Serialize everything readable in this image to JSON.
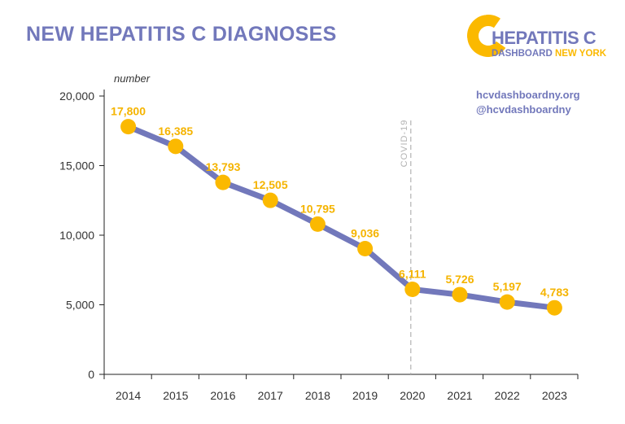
{
  "title": "NEW HEPATITIS C DIAGNOSES",
  "logo": {
    "name": "HEPATITIS C",
    "sub_part1": "DASHBOARD",
    "sub_part2": "NEW YORK"
  },
  "links": {
    "website": "hcvdashboardny.org",
    "handle": "@hcvdashboardny"
  },
  "colors": {
    "title": "#7278bb",
    "line": "#7278bb",
    "marker": "#fbb900",
    "label": "#f5b400",
    "annotation": "#b3b3b3",
    "axis": "#222222"
  },
  "chart_data": {
    "type": "line",
    "title": "NEW HEPATITIS C DIAGNOSES",
    "xlabel": "",
    "ylabel": "number",
    "categories": [
      "2014",
      "2015",
      "2016",
      "2017",
      "2018",
      "2019",
      "2020",
      "2021",
      "2022",
      "2023"
    ],
    "values": [
      17800,
      16385,
      13793,
      12505,
      10795,
      9036,
      6111,
      5726,
      5197,
      4783
    ],
    "value_labels": [
      "17,800",
      "16,385",
      "13,793",
      "12,505",
      "10,795",
      "9,036",
      "6,111",
      "5,726",
      "5,197",
      "4,783"
    ],
    "ylim": [
      0,
      20000
    ],
    "yticks": [
      0,
      5000,
      10000,
      15000,
      20000
    ],
    "ytick_labels": [
      "0",
      "5,000",
      "10,000",
      "15,000",
      "20,000"
    ],
    "grid": false,
    "annotations": [
      {
        "text": "COVID-19",
        "at_category": "2020",
        "style": "dashed vertical line"
      }
    ]
  }
}
